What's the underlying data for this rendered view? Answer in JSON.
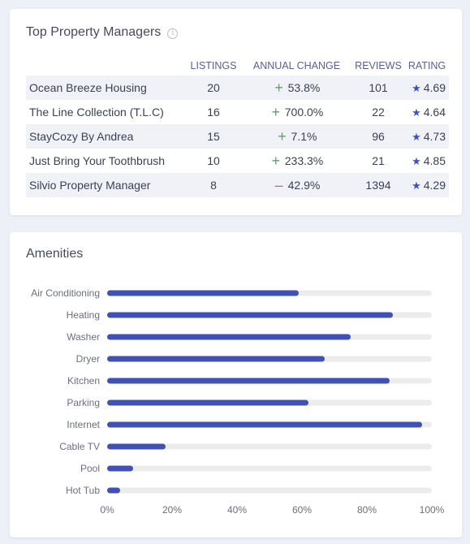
{
  "managers": {
    "title": "Top Property Managers",
    "info_icon": "info-icon",
    "columns": [
      "LISTINGS",
      "ANNUAL CHANGE",
      "REVIEWS",
      "RATING"
    ],
    "rows": [
      {
        "name": "Ocean Breeze Housing",
        "listings": "20",
        "change": "53.8%",
        "direction": "up",
        "reviews": "101",
        "rating": "4.69"
      },
      {
        "name": "The Line Collection (T.L.C)",
        "listings": "16",
        "change": "700.0%",
        "direction": "up",
        "reviews": "22",
        "rating": "4.64"
      },
      {
        "name": "StayCozy By Andrea",
        "listings": "15",
        "change": "7.1%",
        "direction": "up",
        "reviews": "96",
        "rating": "4.73"
      },
      {
        "name": "Just Bring Your Toothbrush",
        "listings": "10",
        "change": "233.3%",
        "direction": "up",
        "reviews": "21",
        "rating": "4.85"
      },
      {
        "name": "Silvio Property Manager",
        "listings": "8",
        "change": "42.9%",
        "direction": "down",
        "reviews": "1394",
        "rating": "4.29"
      }
    ],
    "colors": {
      "up": "#4caf50",
      "down": "#e0604a",
      "star": "#3f51b5"
    }
  },
  "amenities": {
    "title": "Amenities"
  },
  "chart_data": {
    "type": "bar",
    "orientation": "horizontal",
    "categories": [
      "Air Conditioning",
      "Heating",
      "Washer",
      "Dryer",
      "Kitchen",
      "Parking",
      "Internet",
      "Cable TV",
      "Pool",
      "Hot Tub"
    ],
    "values": [
      59,
      88,
      75,
      67,
      87,
      62,
      97,
      18,
      8,
      4
    ],
    "xlim": [
      0,
      100
    ],
    "xticks": [
      "0%",
      "20%",
      "40%",
      "60%",
      "80%",
      "100%"
    ],
    "xlabel": "",
    "ylabel": "",
    "bar_color": "#3f51b5",
    "track_color": "#ececec",
    "grid": false
  }
}
